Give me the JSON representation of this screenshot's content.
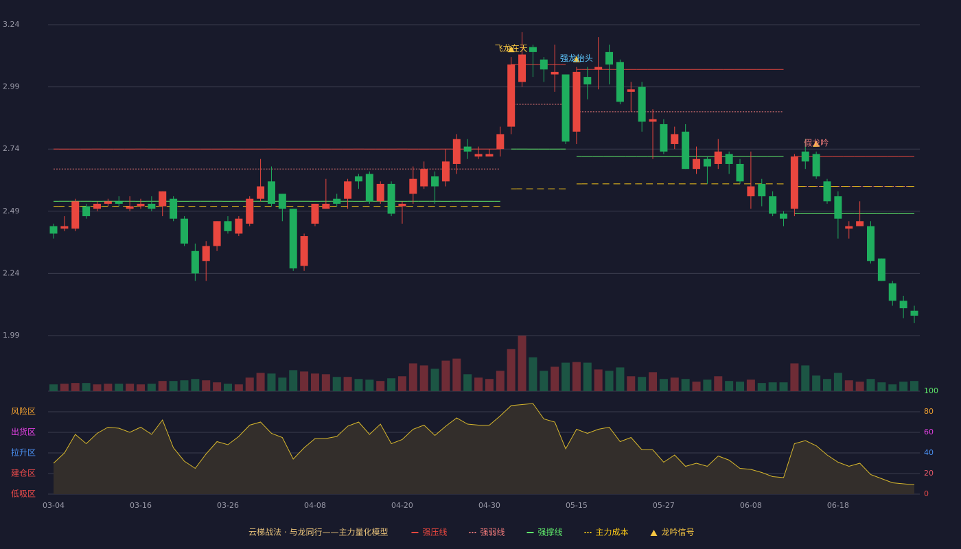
{
  "chart_data": {
    "type": "candlestick",
    "categories": [
      "03-04",
      null,
      null,
      null,
      null,
      null,
      null,
      null,
      "03-16",
      null,
      null,
      null,
      null,
      null,
      null,
      null,
      "03-26",
      null,
      null,
      null,
      null,
      null,
      null,
      null,
      "04-08",
      null,
      null,
      null,
      null,
      null,
      null,
      null,
      "04-20",
      null,
      null,
      null,
      null,
      null,
      null,
      null,
      "04-30",
      null,
      null,
      null,
      null,
      null,
      null,
      null,
      "05-15",
      null,
      null,
      null,
      null,
      null,
      null,
      null,
      "05-27",
      null,
      null,
      null,
      null,
      null,
      null,
      null,
      "06-08",
      null,
      null,
      null,
      null,
      null,
      null,
      null,
      "06-18",
      null,
      null,
      null,
      null,
      null,
      null,
      null
    ],
    "open": [
      2.43,
      2.42,
      2.42,
      2.51,
      2.5,
      2.52,
      2.53,
      2.5,
      2.51,
      2.52,
      2.51,
      2.54,
      2.46,
      2.33,
      2.29,
      2.35,
      2.45,
      2.4,
      2.44,
      2.54,
      2.61,
      2.56,
      2.5,
      2.27,
      2.44,
      2.5,
      2.54,
      2.54,
      2.63,
      2.64,
      2.53,
      2.6,
      2.51,
      2.56,
      2.59,
      2.63,
      2.61,
      2.68,
      2.75,
      2.71,
      2.71,
      2.74,
      2.83,
      3.01,
      3.15,
      3.1,
      3.04,
      3.04,
      2.81,
      3.03,
      3.06,
      3.13,
      3.09,
      2.97,
      2.99,
      2.85,
      2.84,
      2.76,
      2.81,
      2.66,
      2.7,
      2.68,
      2.72,
      2.68,
      2.55,
      2.6,
      2.55,
      2.48,
      2.5,
      2.73,
      2.72,
      2.61,
      2.55,
      2.42,
      2.43,
      2.43,
      2.3,
      2.2,
      2.13,
      2.09
    ],
    "high": [
      2.44,
      2.47,
      2.54,
      2.52,
      2.53,
      2.54,
      2.55,
      2.55,
      2.54,
      2.55,
      2.57,
      2.55,
      2.47,
      2.36,
      2.37,
      2.45,
      2.47,
      2.47,
      2.55,
      2.7,
      2.67,
      2.56,
      2.5,
      2.4,
      2.52,
      2.62,
      2.56,
      2.62,
      2.64,
      2.65,
      2.61,
      2.61,
      2.53,
      2.67,
      2.69,
      2.65,
      2.74,
      2.8,
      2.78,
      2.75,
      2.74,
      2.83,
      3.11,
      3.21,
      3.16,
      3.11,
      3.16,
      3.04,
      3.07,
      3.07,
      3.19,
      3.16,
      3.1,
      3.01,
      3.01,
      2.9,
      2.86,
      2.83,
      2.84,
      2.75,
      2.71,
      2.78,
      2.73,
      2.7,
      2.73,
      2.62,
      2.57,
      2.49,
      2.72,
      2.78,
      2.73,
      2.62,
      2.57,
      2.45,
      2.53,
      2.45,
      2.3,
      2.21,
      2.15,
      2.11
    ],
    "low": [
      2.38,
      2.41,
      2.41,
      2.46,
      2.49,
      2.51,
      2.51,
      2.49,
      2.5,
      2.49,
      2.47,
      2.45,
      2.35,
      2.21,
      2.21,
      2.33,
      2.4,
      2.39,
      2.43,
      2.53,
      2.51,
      2.45,
      2.25,
      2.25,
      2.43,
      2.5,
      2.51,
      2.5,
      2.58,
      2.52,
      2.52,
      2.47,
      2.44,
      2.52,
      2.58,
      2.52,
      2.59,
      2.64,
      2.7,
      2.7,
      2.71,
      2.71,
      2.8,
      2.99,
      3.03,
      3.01,
      2.97,
      2.76,
      2.76,
      2.94,
      2.98,
      3.0,
      2.92,
      2.89,
      2.81,
      2.7,
      2.72,
      2.74,
      2.66,
      2.64,
      2.6,
      2.66,
      2.64,
      2.6,
      2.5,
      2.51,
      2.47,
      2.43,
      2.47,
      2.66,
      2.62,
      2.52,
      2.38,
      2.38,
      2.43,
      2.28,
      2.21,
      2.11,
      2.06,
      2.04
    ],
    "close": [
      2.4,
      2.43,
      2.53,
      2.47,
      2.52,
      2.53,
      2.52,
      2.51,
      2.52,
      2.5,
      2.57,
      2.46,
      2.36,
      2.24,
      2.35,
      2.45,
      2.41,
      2.46,
      2.54,
      2.59,
      2.52,
      2.5,
      2.26,
      2.39,
      2.52,
      2.52,
      2.52,
      2.61,
      2.61,
      2.53,
      2.6,
      2.48,
      2.52,
      2.62,
      2.66,
      2.59,
      2.69,
      2.78,
      2.73,
      2.72,
      2.72,
      2.8,
      3.08,
      3.12,
      3.13,
      3.06,
      3.05,
      2.77,
      3.05,
      3.0,
      3.07,
      3.08,
      2.93,
      2.98,
      2.85,
      2.86,
      2.73,
      2.8,
      2.66,
      2.7,
      2.67,
      2.73,
      2.68,
      2.61,
      2.59,
      2.55,
      2.48,
      2.46,
      2.71,
      2.69,
      2.63,
      2.53,
      2.46,
      2.43,
      2.45,
      2.29,
      2.21,
      2.13,
      2.1,
      2.07
    ],
    "up_color": "#e9473f",
    "down_color": "#1fae5e",
    "ylim": [
      1.99,
      3.24
    ],
    "yticks": [
      1.99,
      2.24,
      2.49,
      2.74,
      2.99,
      3.24
    ],
    "grid": true,
    "levels": [
      {
        "name": "强压线",
        "color": "#e9473f",
        "style": "solid",
        "values": [
          2.74,
          2.74,
          2.74,
          2.74,
          2.74,
          2.74,
          2.74,
          2.74,
          2.74,
          2.74,
          2.74,
          2.74,
          2.74,
          2.74,
          2.74,
          2.74,
          2.74,
          2.74,
          2.74,
          2.74,
          2.74,
          2.74,
          2.74,
          2.74,
          2.74,
          2.74,
          2.74,
          2.74,
          2.74,
          2.74,
          2.74,
          2.74,
          2.74,
          2.74,
          2.74,
          2.74,
          2.74,
          2.74,
          2.74,
          2.74,
          2.74,
          2.74,
          3.08,
          3.08,
          3.08,
          3.08,
          3.08,
          3.08,
          3.06,
          3.06,
          3.06,
          3.06,
          3.06,
          3.06,
          3.06,
          3.06,
          3.06,
          3.06,
          3.06,
          3.06,
          3.06,
          3.06,
          3.06,
          3.06,
          3.06,
          3.06,
          3.06,
          3.06,
          2.71,
          2.71,
          2.71,
          2.71,
          2.71,
          2.71,
          2.71,
          2.71,
          2.71,
          2.71,
          2.71,
          2.71
        ]
      },
      {
        "name": "强弱线",
        "color": "#f07a7a",
        "style": "dotted",
        "values": [
          2.66,
          2.66,
          2.66,
          2.66,
          2.66,
          2.66,
          2.66,
          2.66,
          2.66,
          2.66,
          2.66,
          2.66,
          2.66,
          2.66,
          2.66,
          2.66,
          2.66,
          2.66,
          2.66,
          2.66,
          2.66,
          2.66,
          2.66,
          2.66,
          2.66,
          2.66,
          2.66,
          2.66,
          2.66,
          2.66,
          2.66,
          2.66,
          2.66,
          2.66,
          2.66,
          2.66,
          2.66,
          2.66,
          2.66,
          2.66,
          2.66,
          2.66,
          2.92,
          2.92,
          2.92,
          2.92,
          2.92,
          2.92,
          2.89,
          2.89,
          2.89,
          2.89,
          2.89,
          2.89,
          2.89,
          2.89,
          2.89,
          2.89,
          2.89,
          2.89,
          2.89,
          2.89,
          2.89,
          2.89,
          2.89,
          2.89,
          2.89,
          2.89,
          2.59,
          2.59,
          2.59,
          2.59,
          2.59,
          2.59,
          2.59,
          2.59,
          2.59,
          2.59,
          2.59,
          2.59
        ]
      },
      {
        "name": "强撑线",
        "color": "#5ee86a",
        "style": "solid",
        "values": [
          2.53,
          2.53,
          2.53,
          2.53,
          2.53,
          2.53,
          2.53,
          2.53,
          2.53,
          2.53,
          2.53,
          2.53,
          2.53,
          2.53,
          2.53,
          2.53,
          2.53,
          2.53,
          2.53,
          2.53,
          2.53,
          2.53,
          2.53,
          2.53,
          2.53,
          2.53,
          2.53,
          2.53,
          2.53,
          2.53,
          2.53,
          2.53,
          2.53,
          2.53,
          2.53,
          2.53,
          2.53,
          2.53,
          2.53,
          2.53,
          2.53,
          2.53,
          2.74,
          2.74,
          2.74,
          2.74,
          2.74,
          2.74,
          2.71,
          2.71,
          2.71,
          2.71,
          2.71,
          2.71,
          2.71,
          2.71,
          2.71,
          2.71,
          2.71,
          2.71,
          2.71,
          2.71,
          2.71,
          2.71,
          2.71,
          2.71,
          2.71,
          2.71,
          2.48,
          2.48,
          2.48,
          2.48,
          2.48,
          2.48,
          2.48,
          2.48,
          2.48,
          2.48,
          2.48,
          2.48
        ]
      },
      {
        "name": "主力成本",
        "color": "#f5c518",
        "style": "dashed",
        "values": [
          2.51,
          2.51,
          2.51,
          2.51,
          2.51,
          2.51,
          2.51,
          2.51,
          2.51,
          2.51,
          2.51,
          2.51,
          2.51,
          2.51,
          2.51,
          2.51,
          2.51,
          2.51,
          2.51,
          2.51,
          2.51,
          2.51,
          2.51,
          2.51,
          2.51,
          2.51,
          2.51,
          2.51,
          2.51,
          2.51,
          2.51,
          2.51,
          2.51,
          2.51,
          2.51,
          2.51,
          2.51,
          2.51,
          2.51,
          2.51,
          2.51,
          2.51,
          2.58,
          2.58,
          2.58,
          2.58,
          2.58,
          2.58,
          2.6,
          2.6,
          2.6,
          2.6,
          2.6,
          2.6,
          2.6,
          2.6,
          2.6,
          2.6,
          2.6,
          2.6,
          2.6,
          2.6,
          2.6,
          2.6,
          2.6,
          2.6,
          2.6,
          2.6,
          2.59,
          2.59,
          2.59,
          2.59,
          2.59,
          2.59,
          2.59,
          2.59,
          2.59,
          2.59,
          2.59,
          2.59
        ]
      }
    ],
    "signals": [
      null,
      null,
      null,
      null,
      null,
      null,
      null,
      null,
      null,
      null,
      null,
      null,
      null,
      null,
      null,
      null,
      null,
      null,
      null,
      null,
      null,
      null,
      null,
      null,
      null,
      null,
      null,
      null,
      null,
      null,
      null,
      null,
      null,
      null,
      null,
      null,
      null,
      null,
      null,
      null,
      null,
      null,
      {
        "text": "飞龙在天",
        "color": "#f5c542"
      },
      null,
      null,
      null,
      null,
      null,
      {
        "text": "强龙抬头",
        "color": "#5bc0f5"
      },
      null,
      null,
      null,
      null,
      null,
      null,
      null,
      null,
      null,
      null,
      null,
      null,
      null,
      null,
      null,
      null,
      null,
      null,
      null,
      null,
      null,
      {
        "text": "假龙吟",
        "color": "#f07a7a"
      },
      null,
      null,
      null,
      null,
      null,
      null,
      null,
      null,
      null,
      null,
      null
    ],
    "signal_name": "龙吟信号",
    "signal_color": "#f5c542",
    "volume": {
      "values": [
        10,
        11,
        12,
        12,
        10,
        11,
        11,
        11,
        10,
        11,
        15,
        15,
        16,
        18,
        16,
        13,
        11,
        10,
        20,
        27,
        26,
        20,
        31,
        29,
        26,
        25,
        21,
        21,
        18,
        17,
        15,
        19,
        22,
        41,
        38,
        33,
        45,
        48,
        25,
        20,
        18,
        30,
        62,
        82,
        50,
        30,
        36,
        42,
        43,
        42,
        32,
        30,
        35,
        22,
        21,
        28,
        18,
        20,
        18,
        14,
        17,
        22,
        15,
        14,
        17,
        12,
        13,
        13,
        41,
        38,
        23,
        18,
        27,
        16,
        14,
        18,
        13,
        10,
        14,
        15
      ],
      "up_color": "#6e2c36",
      "down_color": "#1c5544"
    },
    "oscillator": {
      "values": [
        30,
        40,
        58,
        49,
        59,
        65,
        64,
        60,
        65,
        58,
        72,
        45,
        32,
        25,
        39,
        51,
        48,
        56,
        67,
        70,
        59,
        55,
        34,
        45,
        54,
        54,
        56,
        66,
        70,
        58,
        68,
        49,
        53,
        63,
        67,
        57,
        66,
        74,
        68,
        67,
        67,
        76,
        86,
        87,
        88,
        73,
        70,
        44,
        63,
        59,
        63,
        65,
        51,
        55,
        43,
        43,
        31,
        38,
        27,
        30,
        27,
        37,
        33,
        25,
        24,
        21,
        17,
        16,
        49,
        52,
        47,
        38,
        31,
        27,
        30,
        19,
        15,
        11,
        10,
        9
      ],
      "color": "#d8b82c",
      "fill": "#332e2b",
      "ylim": [
        0,
        100
      ],
      "yticks": [
        0,
        20,
        40,
        60,
        80,
        100
      ],
      "ytick_colors": [
        "#e84a4a",
        "#e85a6a",
        "#4a8ff0",
        "#e040e0",
        "#f0a030",
        "#5ee86a"
      ],
      "zones": [
        {
          "value": 80,
          "label": "风险区",
          "color": "#f0a030"
        },
        {
          "value": 60,
          "label": "出货区",
          "color": "#e040e0"
        },
        {
          "value": 40,
          "label": "拉升区",
          "color": "#4a8ff0"
        },
        {
          "value": 20,
          "label": "建仓区",
          "color": "#e84a4a"
        },
        {
          "value": 0,
          "label": "低吸区",
          "color": "#e84a4a"
        }
      ]
    },
    "legend_title": "云梯战法 · 与龙同行——主力量化模型"
  }
}
